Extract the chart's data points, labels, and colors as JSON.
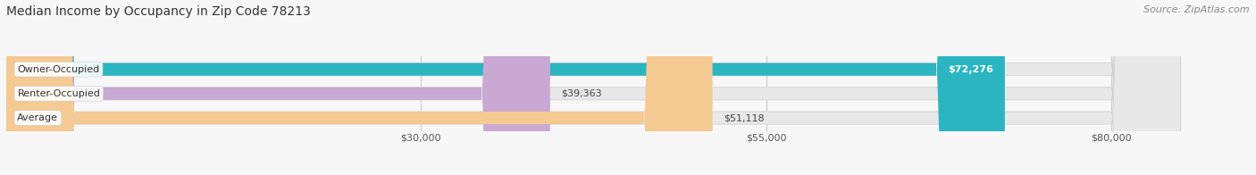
{
  "title": "Median Income by Occupancy in Zip Code 78213",
  "source_text": "Source: ZipAtlas.com",
  "categories": [
    "Owner-Occupied",
    "Renter-Occupied",
    "Average"
  ],
  "values": [
    72276,
    39363,
    51118
  ],
  "bar_colors": [
    "#2ab5c1",
    "#c9a8d4",
    "#f5c992"
  ],
  "value_labels": [
    "$72,276",
    "$39,363",
    "$51,118"
  ],
  "xlim_min": 0,
  "xlim_max": 90000,
  "xticks": [
    30000,
    55000,
    80000
  ],
  "xtick_labels": [
    "$30,000",
    "$55,000",
    "$80,000"
  ],
  "bg_track_color": "#e8e8e8",
  "bg_track_max": 85000,
  "plot_bg": "#f7f7f7",
  "fig_bg": "#f7f7f7",
  "title_fontsize": 10,
  "source_fontsize": 8,
  "bar_height": 0.52,
  "cat_label_fontsize": 8,
  "val_label_fontsize": 8,
  "bar_rounding": 5000
}
